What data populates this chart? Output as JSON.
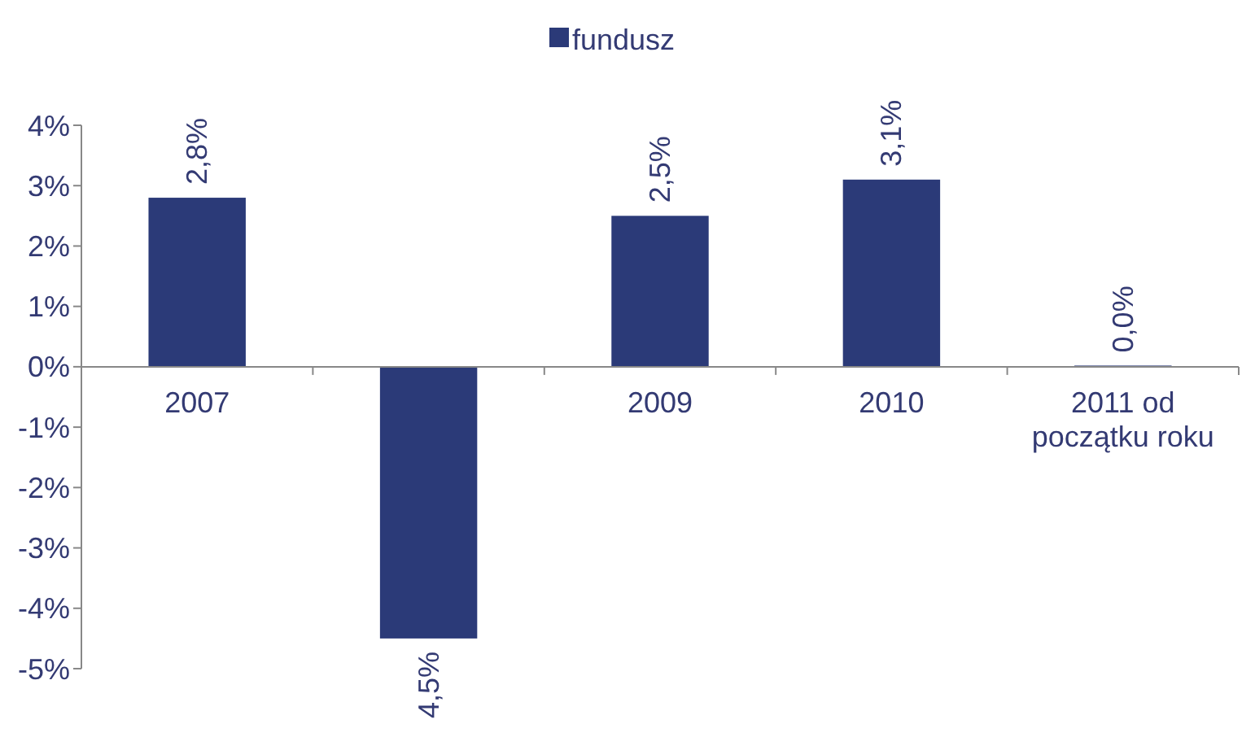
{
  "chart_data": {
    "type": "bar",
    "categories": [
      "2007",
      null,
      "2009",
      "2010",
      "2011 od początku roku"
    ],
    "series": [
      {
        "name": "fundusz",
        "color": "#2b3a78",
        "values": [
          2.8,
          -4.5,
          2.5,
          3.1,
          0.02
        ]
      }
    ],
    "value_labels": [
      "2,8%",
      "4,5%",
      "2,5%",
      "3,1%",
      "0,0%"
    ],
    "ylim": [
      -5,
      4
    ],
    "yticks": [
      {
        "value": -5,
        "label": "-5%"
      },
      {
        "value": -4,
        "label": "-4%"
      },
      {
        "value": -3,
        "label": "-3%"
      },
      {
        "value": -2,
        "label": "-2%"
      },
      {
        "value": -1,
        "label": "-1%"
      },
      {
        "value": 0,
        "label": "0%"
      },
      {
        "value": 1,
        "label": "1%"
      },
      {
        "value": 2,
        "label": "2%"
      },
      {
        "value": 3,
        "label": "3%"
      },
      {
        "value": 4,
        "label": "4%"
      }
    ],
    "grid": false,
    "legend": "top"
  }
}
